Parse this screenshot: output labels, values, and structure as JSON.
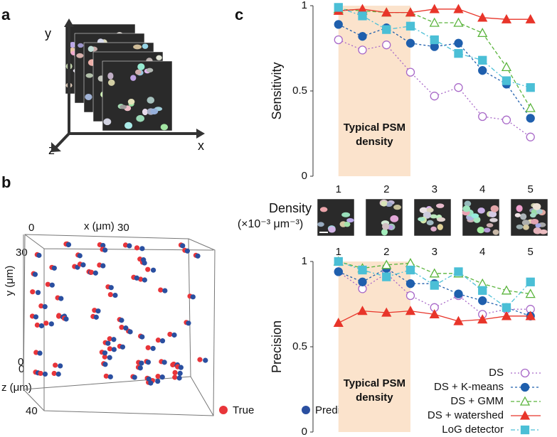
{
  "panel_a": {
    "label": "a",
    "axes": [
      "x",
      "y",
      "z"
    ]
  },
  "panel_b": {
    "label": "b",
    "x_label": "x (μm)",
    "y_label": "y (μm)",
    "z_label": "z (μm)",
    "x_ticks": [
      "0",
      "30"
    ],
    "y_ticks": [
      "30",
      "0"
    ],
    "z_ticks": [
      "0",
      "40"
    ],
    "legend": [
      "True",
      "Predicted"
    ],
    "legend_colors": [
      "#e8353a",
      "#2a4fa0"
    ]
  },
  "panel_c": {
    "label": "c",
    "density_label": [
      "Density",
      "(×10⁻³ μm⁻³)"
    ],
    "shade_label": [
      "Typical PSM",
      "density"
    ],
    "shade_color": "#fbe3cc",
    "shade_text_color": "#f2a77a"
  },
  "chart_data": [
    {
      "type": "line",
      "y_label": "Sensitivity",
      "x": [
        1,
        1.5,
        2,
        2.5,
        3,
        3.5,
        4,
        4.5,
        5
      ],
      "xlim": [
        0.47,
        5.36
      ],
      "xticks": [
        1,
        2,
        3,
        4,
        5
      ],
      "ylim": [
        0,
        1
      ],
      "yticks": [
        0,
        0.5,
        1
      ],
      "shade": [
        1,
        2.5
      ],
      "series": [
        {
          "color": "#a868c8",
          "marker": "open-circle",
          "dash": "2,3",
          "values": [
            0.8,
            0.74,
            0.77,
            0.61,
            0.47,
            0.52,
            0.35,
            0.33,
            0.23
          ]
        },
        {
          "color": "#1f5fad",
          "marker": "circle",
          "dash": "3,3",
          "values": [
            0.89,
            0.82,
            0.87,
            0.78,
            0.76,
            0.78,
            0.62,
            0.54,
            0.34
          ]
        },
        {
          "color": "#5ab43c",
          "marker": "open-triangle",
          "dash": "5,3",
          "values": [
            0.98,
            0.97,
            0.96,
            0.96,
            0.9,
            0.9,
            0.84,
            0.64,
            0.4
          ]
        },
        {
          "color": "#e8352a",
          "marker": "triangle",
          "dash": "none",
          "values": [
            0.97,
            0.98,
            0.96,
            0.96,
            0.98,
            0.98,
            0.93,
            0.92,
            0.92
          ]
        },
        {
          "color": "#4bbfd6",
          "marker": "square",
          "dash": "6,3,2,3",
          "values": [
            0.99,
            0.94,
            0.86,
            0.88,
            0.8,
            0.72,
            0.68,
            0.56,
            0.52
          ]
        }
      ]
    },
    {
      "type": "line",
      "y_label": "Precision",
      "x": [
        1,
        1.5,
        2,
        2.5,
        3,
        3.5,
        4,
        4.5,
        5
      ],
      "xlim": [
        0.47,
        5.36
      ],
      "xticks": [
        1,
        2,
        3,
        4,
        5
      ],
      "ylim": [
        0,
        1
      ],
      "yticks": [
        0,
        0.5,
        1
      ],
      "shade": [
        1,
        2.5
      ],
      "series": [
        {
          "name": "DS",
          "color": "#a868c8",
          "marker": "open-circle",
          "dash": "2,3",
          "values": [
            0.94,
            0.84,
            0.93,
            0.8,
            0.73,
            0.8,
            0.69,
            0.72,
            0.72
          ]
        },
        {
          "name": "DS + K-means",
          "color": "#1f5fad",
          "marker": "circle",
          "dash": "3,3",
          "values": [
            0.94,
            0.88,
            0.96,
            0.87,
            0.87,
            0.81,
            0.77,
            0.73,
            0.68
          ]
        },
        {
          "name": "DS + GMM",
          "color": "#5ab43c",
          "marker": "open-triangle",
          "dash": "5,3",
          "values": [
            1.0,
            0.96,
            0.98,
            0.99,
            0.93,
            0.93,
            0.87,
            0.83,
            0.81
          ]
        },
        {
          "name": "DS + watershed",
          "color": "#e8352a",
          "marker": "triangle",
          "dash": "none",
          "values": [
            0.64,
            0.71,
            0.7,
            0.71,
            0.69,
            0.65,
            0.66,
            0.68,
            0.68
          ]
        },
        {
          "name": "LoG detector",
          "color": "#4bbfd6",
          "marker": "square",
          "dash": "6,3,2,3",
          "values": [
            1.0,
            0.95,
            0.91,
            0.95,
            0.86,
            0.94,
            0.83,
            0.73,
            0.88
          ]
        }
      ]
    }
  ]
}
